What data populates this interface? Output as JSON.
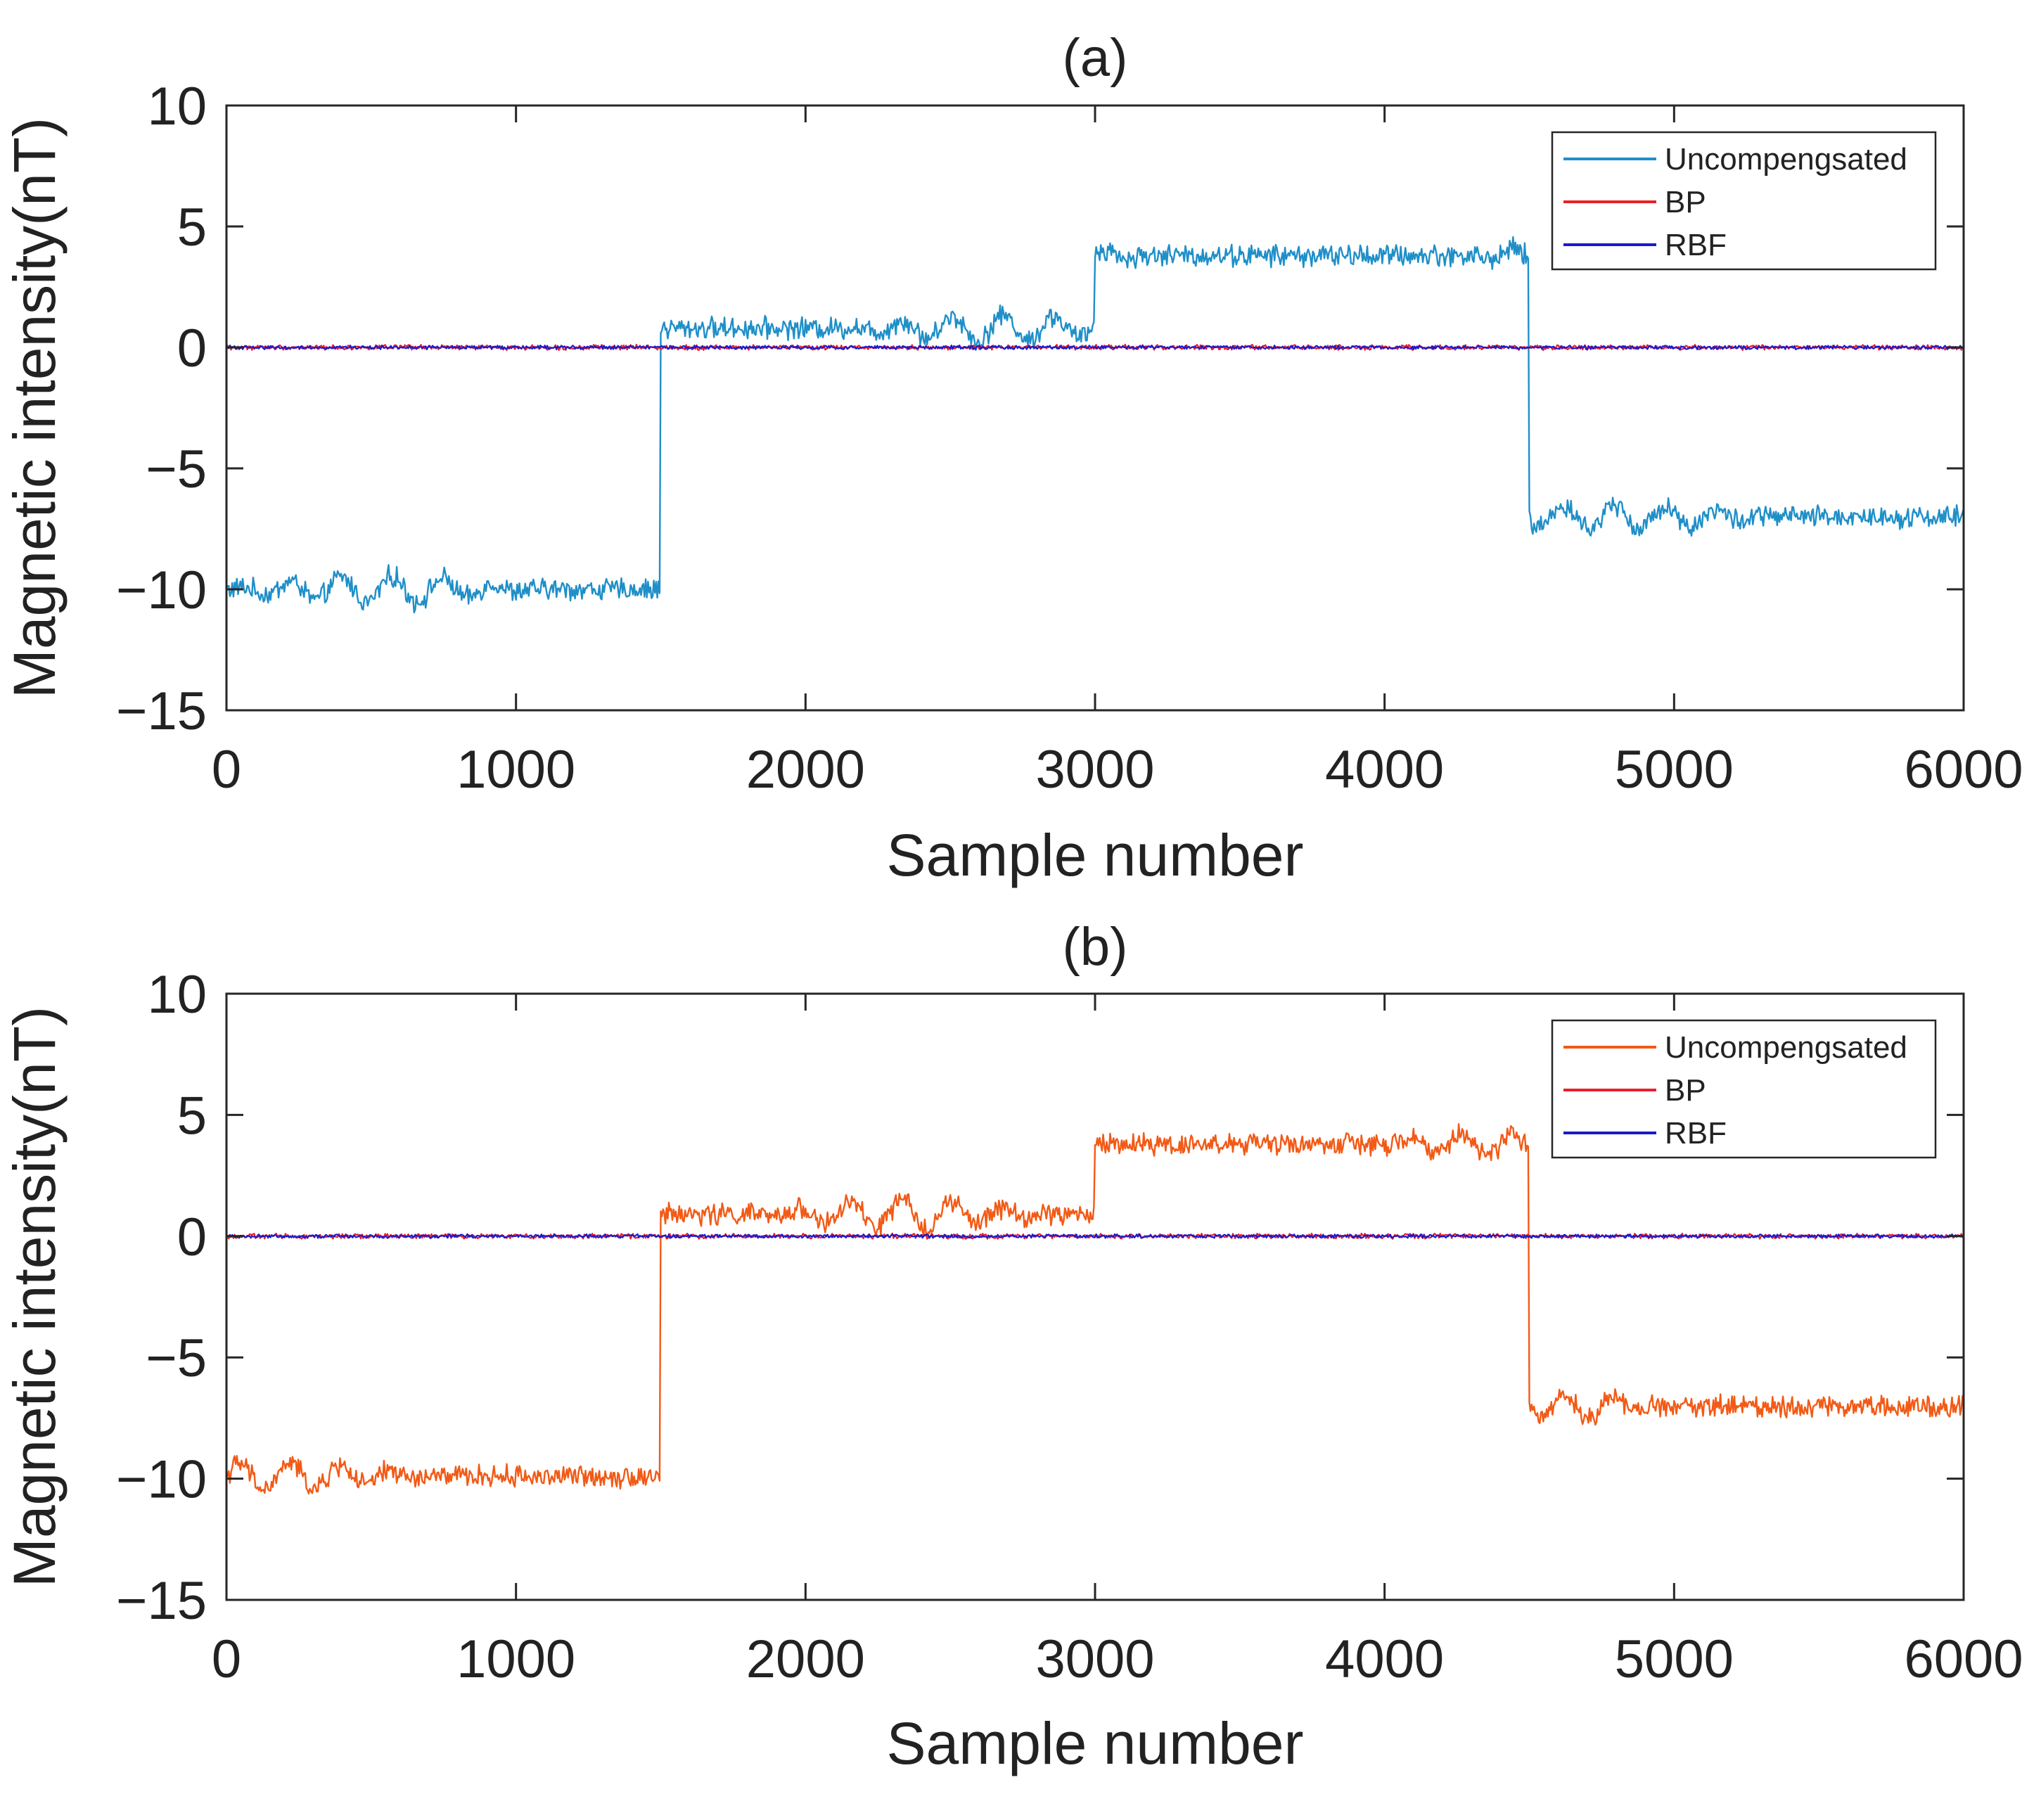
{
  "chart_data": [
    {
      "type": "line",
      "title": "(a)",
      "xlabel": "Sample number",
      "ylabel": "Magnetic intensity(nT)",
      "xlim": [
        0,
        6000
      ],
      "ylim": [
        -15,
        10
      ],
      "xticks": [
        "0",
        "1000",
        "2000",
        "3000",
        "4000",
        "5000",
        "6000"
      ],
      "yticks": [
        "10",
        "5",
        "0",
        "−5",
        "−10",
        "−15"
      ],
      "grid": false,
      "legend_position": "top-right",
      "series": [
        {
          "name": "Uncompengsated",
          "color": "#1f8fc8",
          "segments": [
            {
              "x_start": 0,
              "x_end": 1500,
              "level": -10.0,
              "noise": 0.35
            },
            {
              "x_start": 1500,
              "x_end": 3000,
              "level": 0.8,
              "noise": 0.35
            },
            {
              "x_start": 3000,
              "x_end": 4500,
              "level": 3.8,
              "noise": 0.35
            },
            {
              "x_start": 4500,
              "x_end": 6000,
              "level": -7.0,
              "noise": 0.35
            }
          ]
        },
        {
          "name": "BP",
          "color": "#e8202a",
          "level": 0.0,
          "noise": 0.08
        },
        {
          "name": "RBF",
          "color": "#1a1acc",
          "level": 0.0,
          "noise": 0.06
        }
      ]
    },
    {
      "type": "line",
      "title": "(b)",
      "xlabel": "Sample number",
      "ylabel": "Magnetic intensity(nT)",
      "xlim": [
        0,
        6000
      ],
      "ylim": [
        -15,
        10
      ],
      "xticks": [
        "0",
        "1000",
        "2000",
        "3000",
        "4000",
        "5000",
        "6000"
      ],
      "yticks": [
        "10",
        "5",
        "0",
        "−5",
        "−10",
        "−15"
      ],
      "grid": false,
      "legend_position": "top-right",
      "series": [
        {
          "name": "Uncompengsated",
          "color": "#f25a16",
          "segments": [
            {
              "x_start": 0,
              "x_end": 1500,
              "level": -9.9,
              "noise": 0.35
            },
            {
              "x_start": 1500,
              "x_end": 3000,
              "level": 0.9,
              "noise": 0.35
            },
            {
              "x_start": 3000,
              "x_end": 4500,
              "level": 3.8,
              "noise": 0.35
            },
            {
              "x_start": 4500,
              "x_end": 6000,
              "level": -7.0,
              "noise": 0.35
            }
          ]
        },
        {
          "name": "BP",
          "color": "#e8202a",
          "level": 0.0,
          "noise": 0.08
        },
        {
          "name": "RBF",
          "color": "#1a1acc",
          "level": 0.0,
          "noise": 0.06
        }
      ]
    }
  ]
}
